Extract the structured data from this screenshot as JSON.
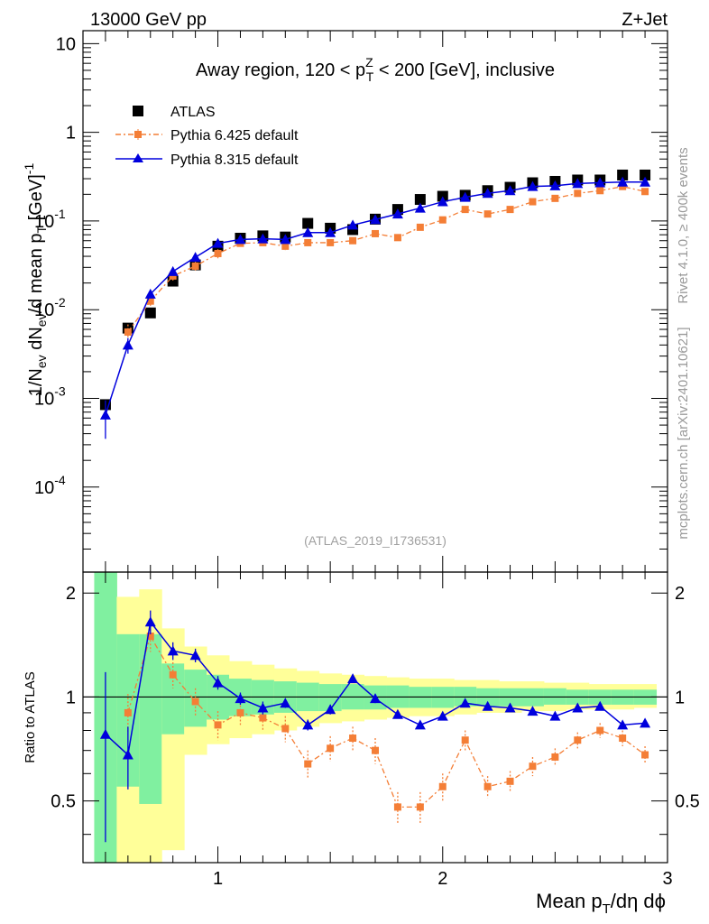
{
  "header": {
    "left": "13000 GeV pp",
    "right": "Z+Jet"
  },
  "side_labels": {
    "rivet": "Rivet 4.1.0, ≥ 400k events",
    "mcplots": "mcplots.cern.ch [arXiv:2401.10621]"
  },
  "watermark": "(ATLAS_2019_I1736531)",
  "title": {
    "prefix": "Away region, 120 < p",
    "sup": "Z",
    "sub": "T",
    "suffix": " < 200 [GeV], inclusive"
  },
  "ylabel": {
    "p1": "1/N",
    "s1": "ev",
    "p2": " dN",
    "s2": "ev",
    "p3": "/d mean p",
    "s3": "T",
    "p4": " [GeV]",
    "sup": "-1"
  },
  "ratio_ylabel": "Ratio to ATLAS",
  "xlabel": {
    "p1": "Mean p",
    "sub": "T",
    "p2": "/dη dϕ"
  },
  "legend": {
    "atlas": "ATLAS",
    "py6": "Pythia 6.425 default",
    "py8": "Pythia 8.315 default"
  },
  "colors": {
    "atlas": "#000000",
    "py6": "#f47e36",
    "py8": "#0000dd",
    "band_inner": "#80f0a0",
    "band_outer": "#ffff99"
  },
  "chart_data": [
    {
      "type": "scatter",
      "name": "main",
      "yscale": "log",
      "xlim": [
        0.4,
        3.0
      ],
      "ylim": [
        1.1e-05,
        14
      ],
      "x_ticks": [
        1,
        2,
        3
      ],
      "y_tick_labels": [
        {
          "v": 10,
          "base": "10",
          "exp": ""
        },
        {
          "v": 1,
          "base": "1",
          "exp": ""
        },
        {
          "v": 0.1,
          "base": "10",
          "exp": "-1"
        },
        {
          "v": 0.01,
          "base": "10",
          "exp": "-2"
        },
        {
          "v": 0.001,
          "base": "10",
          "exp": "-3"
        },
        {
          "v": 0.0001,
          "base": "10",
          "exp": "-4"
        }
      ],
      "x": [
        0.5,
        0.6,
        0.7,
        0.8,
        0.9,
        1.0,
        1.1,
        1.2,
        1.3,
        1.4,
        1.5,
        1.6,
        1.7,
        1.8,
        1.9,
        2.0,
        2.1,
        2.2,
        2.3,
        2.4,
        2.5,
        2.6,
        2.7,
        2.8,
        2.9
      ],
      "series": [
        {
          "name": "ATLAS",
          "key": "atlas",
          "values": [
            0.00085,
            0.0062,
            0.0092,
            0.021,
            0.032,
            0.052,
            0.064,
            0.068,
            0.066,
            0.094,
            0.083,
            0.08,
            0.105,
            0.135,
            0.175,
            0.19,
            0.195,
            0.22,
            0.24,
            0.27,
            0.28,
            0.29,
            0.29,
            0.33,
            0.33
          ],
          "errors": [
            6e-05,
            0.0008,
            0.0006,
            0.0016,
            0.002,
            0.003,
            0.003,
            0.003,
            0.003,
            0.004,
            0.004,
            0.004,
            0.005,
            0.006,
            0.007,
            0.008,
            0.008,
            0.009,
            0.009,
            0.01,
            0.01,
            0.01,
            0.01,
            0.012,
            0.012
          ]
        },
        {
          "name": "Pythia 6.425 default",
          "key": "py6",
          "values": [
            null,
            0.0056,
            0.0125,
            0.024,
            0.031,
            0.043,
            0.056,
            0.057,
            0.052,
            0.057,
            0.057,
            0.06,
            0.072,
            0.065,
            0.085,
            0.103,
            0.135,
            0.12,
            0.135,
            0.165,
            0.18,
            0.205,
            0.22,
            0.245,
            0.215
          ],
          "errors": [
            null,
            0.0012,
            0.0015,
            0.003,
            0.004,
            0.005,
            0.005,
            0.005,
            0.005,
            0.005,
            0.005,
            0.005,
            0.006,
            0.006,
            0.007,
            0.008,
            0.009,
            0.009,
            0.01,
            0.01,
            0.01,
            0.012,
            0.012,
            0.013,
            0.013
          ]
        },
        {
          "name": "Pythia 8.315 default",
          "key": "py8",
          "values": [
            0.00065,
            0.004,
            0.015,
            0.027,
            0.039,
            0.056,
            0.062,
            0.063,
            0.062,
            0.074,
            0.074,
            0.09,
            0.104,
            0.12,
            0.14,
            0.165,
            0.185,
            0.205,
            0.22,
            0.245,
            0.25,
            0.265,
            0.27,
            0.275,
            0.275
          ],
          "errors": [
            0.0003,
            0.0008,
            0.0015,
            0.002,
            0.003,
            0.003,
            0.003,
            0.003,
            0.003,
            0.003,
            0.003,
            0.004,
            0.004,
            0.005,
            0.005,
            0.006,
            0.006,
            0.007,
            0.007,
            0.008,
            0.008,
            0.008,
            0.008,
            0.008,
            0.008
          ]
        }
      ]
    },
    {
      "type": "scatter",
      "name": "ratio",
      "yscale": "log",
      "xlim": [
        0.4,
        3.0
      ],
      "ylim": [
        0.3313,
        2.3
      ],
      "x_tick_labels": [
        {
          "v": 1,
          "t": "1"
        },
        {
          "v": 2,
          "t": "2"
        },
        {
          "v": 3,
          "t": "3"
        }
      ],
      "y_tick_labels": [
        {
          "v": 0.5,
          "t": "0.5"
        },
        {
          "v": 1,
          "t": "1"
        },
        {
          "v": 2,
          "t": "2"
        }
      ],
      "reference": 1,
      "bands": {
        "edges": [
          0.45,
          0.55,
          0.65,
          0.75,
          0.85,
          0.95,
          1.05,
          1.15,
          1.25,
          1.35,
          1.45,
          1.55,
          1.65,
          1.75,
          1.85,
          1.95,
          2.05,
          2.15,
          2.25,
          2.35,
          2.45,
          2.55,
          2.65,
          2.75,
          2.85,
          2.95
        ],
        "inner_low": [
          0.3,
          0.55,
          0.49,
          0.78,
          0.82,
          0.86,
          0.88,
          0.89,
          0.9,
          0.91,
          0.91,
          0.92,
          0.92,
          0.93,
          0.93,
          0.93,
          0.94,
          0.94,
          0.94,
          0.94,
          0.95,
          0.95,
          0.95,
          0.95,
          0.95
        ],
        "inner_high": [
          2.3,
          1.52,
          1.52,
          1.25,
          1.2,
          1.16,
          1.13,
          1.12,
          1.11,
          1.1,
          1.09,
          1.09,
          1.08,
          1.08,
          1.07,
          1.07,
          1.07,
          1.06,
          1.06,
          1.06,
          1.06,
          1.05,
          1.05,
          1.05,
          1.05
        ],
        "outer_low": [
          0.3,
          0.33,
          0.33,
          0.36,
          0.68,
          0.73,
          0.76,
          0.78,
          0.8,
          0.82,
          0.84,
          0.85,
          0.86,
          0.87,
          0.88,
          0.88,
          0.89,
          0.9,
          0.9,
          0.91,
          0.91,
          0.92,
          0.92,
          0.92,
          0.93
        ],
        "outer_high": [
          2.3,
          1.95,
          2.05,
          1.58,
          1.4,
          1.32,
          1.27,
          1.24,
          1.21,
          1.19,
          1.17,
          1.16,
          1.15,
          1.14,
          1.13,
          1.13,
          1.12,
          1.12,
          1.11,
          1.11,
          1.1,
          1.1,
          1.09,
          1.09,
          1.09
        ]
      },
      "x": [
        0.5,
        0.6,
        0.7,
        0.8,
        0.9,
        1.0,
        1.1,
        1.2,
        1.3,
        1.4,
        1.5,
        1.6,
        1.7,
        1.8,
        1.9,
        2.0,
        2.1,
        2.2,
        2.3,
        2.4,
        2.5,
        2.6,
        2.7,
        2.8,
        2.9
      ],
      "series": [
        {
          "name": "Pythia 6.425 default",
          "key": "py6",
          "values": [
            null,
            0.9,
            1.5,
            1.16,
            0.97,
            0.83,
            0.9,
            0.87,
            0.81,
            0.64,
            0.71,
            0.76,
            0.7,
            0.48,
            0.48,
            0.55,
            0.75,
            0.55,
            0.57,
            0.63,
            0.67,
            0.75,
            0.8,
            0.76,
            0.68
          ],
          "errors": [
            null,
            0.12,
            0.15,
            0.1,
            0.09,
            0.08,
            0.07,
            0.07,
            0.07,
            0.06,
            0.06,
            0.06,
            0.06,
            0.05,
            0.05,
            0.05,
            0.05,
            0.04,
            0.04,
            0.04,
            0.04,
            0.04,
            0.04,
            0.04,
            0.04
          ]
        },
        {
          "name": "Pythia 8.315 default",
          "key": "py8",
          "values": [
            0.78,
            0.68,
            1.65,
            1.36,
            1.32,
            1.1,
            0.99,
            0.93,
            0.96,
            0.83,
            0.92,
            1.13,
            0.99,
            0.89,
            0.83,
            0.88,
            0.96,
            0.94,
            0.93,
            0.91,
            0.88,
            0.93,
            0.94,
            0.83,
            0.84
          ],
          "errors": [
            0.4,
            0.14,
            0.13,
            0.08,
            0.06,
            0.05,
            0.04,
            0.04,
            0.03,
            0.03,
            0.03,
            0.03,
            0.03,
            0.02,
            0.02,
            0.02,
            0.02,
            0.02,
            0.02,
            0.02,
            0.02,
            0.02,
            0.02,
            0.02,
            0.02
          ]
        }
      ]
    }
  ]
}
